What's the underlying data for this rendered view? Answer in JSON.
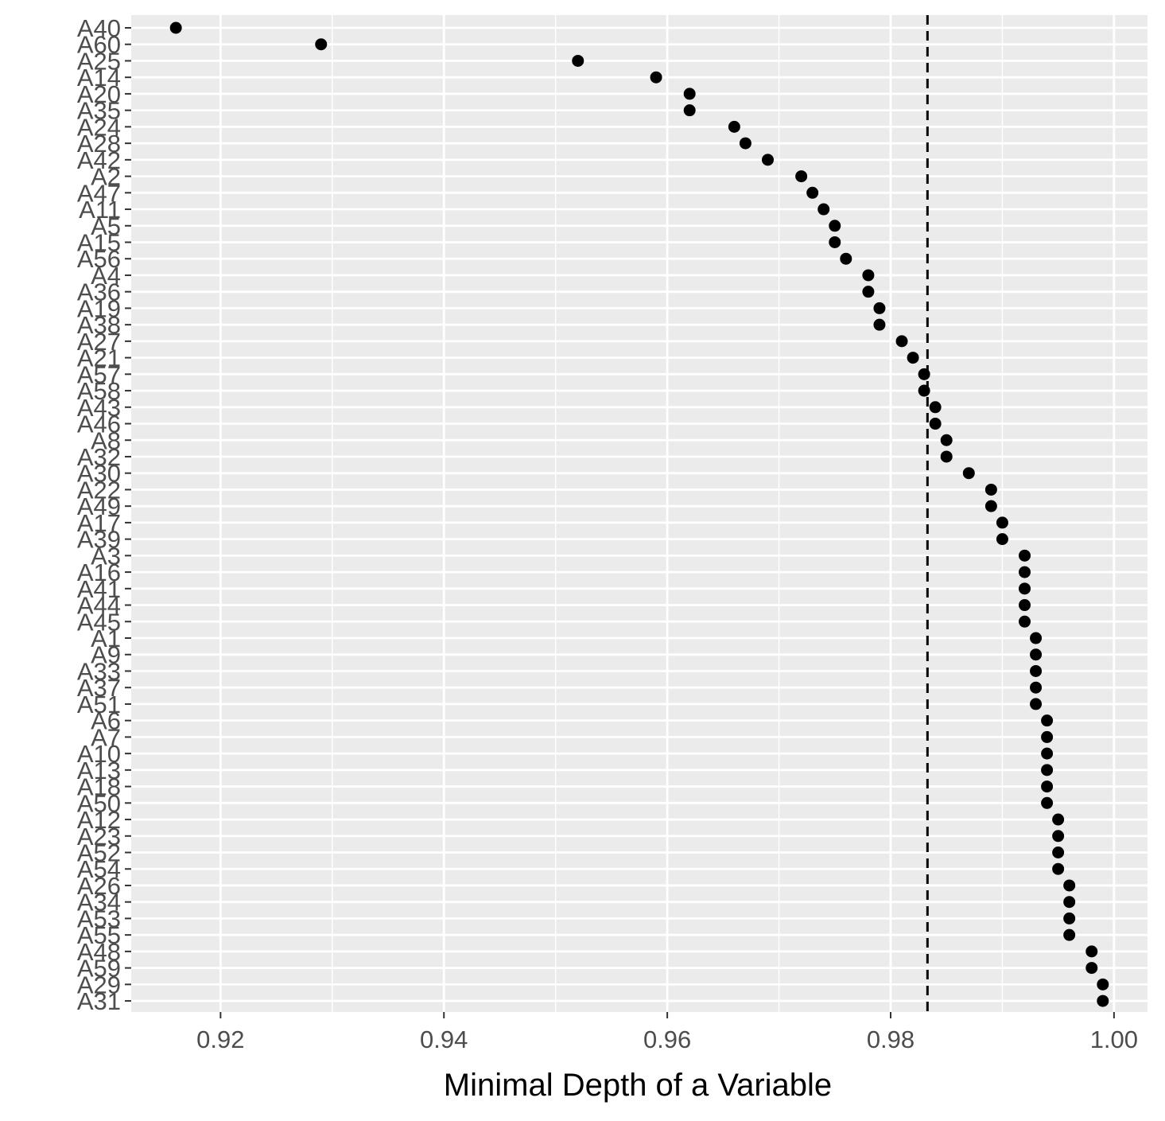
{
  "chart_data": {
    "type": "scatter",
    "title": "",
    "xlabel": "Minimal Depth of a Variable",
    "ylabel": "",
    "xlim": [
      0.912,
      1.003
    ],
    "x_ticks": [
      0.92,
      0.94,
      0.96,
      0.98,
      1.0
    ],
    "x_tick_labels": [
      "0.92",
      "0.94",
      "0.96",
      "0.98",
      "1.00"
    ],
    "threshold": 0.9833,
    "threshold_style": "dashed",
    "grid": true,
    "legend": "none",
    "categories": [
      "A40",
      "A60",
      "A25",
      "A14",
      "A20",
      "A35",
      "A24",
      "A28",
      "A42",
      "A2",
      "A47",
      "A11",
      "A5",
      "A15",
      "A56",
      "A4",
      "A36",
      "A19",
      "A38",
      "A27",
      "A21",
      "A57",
      "A58",
      "A43",
      "A46",
      "A8",
      "A32",
      "A30",
      "A22",
      "A49",
      "A17",
      "A39",
      "A3",
      "A16",
      "A41",
      "A44",
      "A45",
      "A1",
      "A9",
      "A33",
      "A37",
      "A51",
      "A6",
      "A7",
      "A10",
      "A13",
      "A18",
      "A50",
      "A12",
      "A23",
      "A52",
      "A54",
      "A26",
      "A34",
      "A53",
      "A55",
      "A48",
      "A59",
      "A29",
      "A31"
    ],
    "values": [
      0.916,
      0.929,
      0.952,
      0.959,
      0.962,
      0.962,
      0.966,
      0.967,
      0.969,
      0.972,
      0.973,
      0.974,
      0.975,
      0.975,
      0.976,
      0.978,
      0.978,
      0.979,
      0.979,
      0.981,
      0.982,
      0.983,
      0.983,
      0.984,
      0.984,
      0.985,
      0.985,
      0.987,
      0.989,
      0.989,
      0.99,
      0.99,
      0.992,
      0.992,
      0.992,
      0.992,
      0.992,
      0.993,
      0.993,
      0.993,
      0.993,
      0.993,
      0.994,
      0.994,
      0.994,
      0.994,
      0.994,
      0.994,
      0.995,
      0.995,
      0.995,
      0.995,
      0.996,
      0.996,
      0.996,
      0.996,
      0.998,
      0.998,
      0.999,
      0.999
    ],
    "colors": {
      "panel": "#EBEBEB",
      "grid": "#FFFFFF",
      "point": "#000000",
      "tick_text": "#4D4D4D",
      "axis_title": "#000000"
    }
  }
}
